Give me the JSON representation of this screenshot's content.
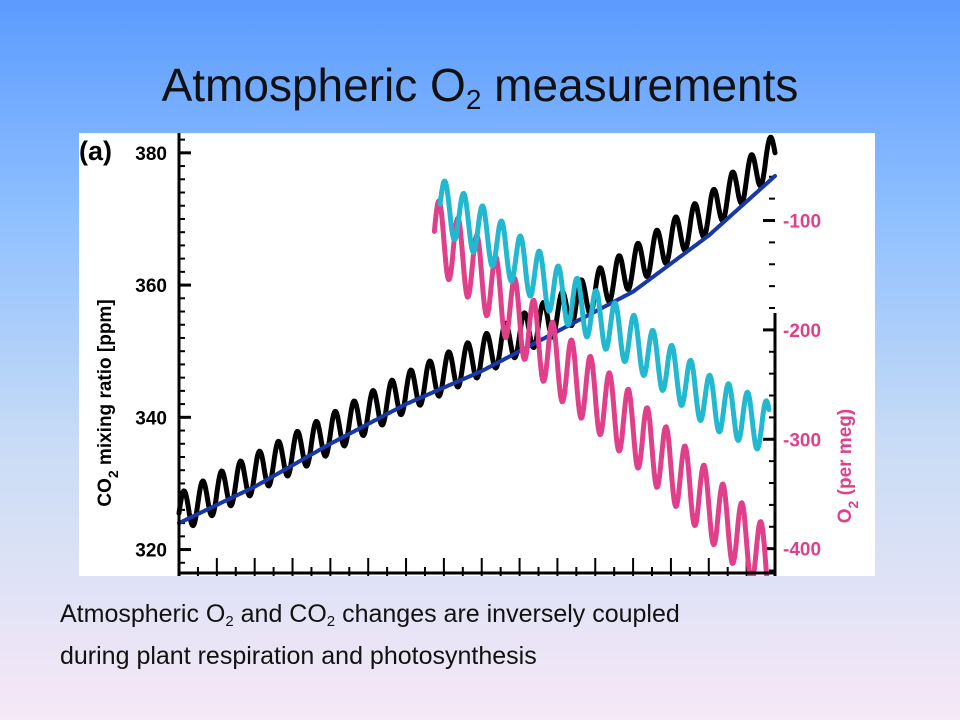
{
  "slide": {
    "title_prefix": "Atmospheric O",
    "title_sub": "2",
    "title_suffix": " measurements",
    "caption_line1_a": "Atmospheric O",
    "caption_line1_sub1": "2",
    "caption_line1_b": " and CO",
    "caption_line1_sub2": "2",
    "caption_line1_c": " changes are inversely coupled",
    "caption_line2": "during plant respiration and photosynthesis"
  },
  "chart_data": {
    "type": "line",
    "panel_label": "(a)",
    "y_left": {
      "label_main": "CO",
      "label_sub": "2",
      "label_rest": " mixing ratio [ppm]",
      "ticks": [
        320,
        340,
        360,
        380
      ],
      "range": [
        316,
        383
      ],
      "color": "#000000"
    },
    "y_right": {
      "label_main": "O",
      "label_sub": "2",
      "label_rest": " (per meg)",
      "ticks": [
        -100,
        -200,
        -300,
        -400
      ],
      "range": [
        -425,
        -20
      ],
      "color": "#e0408a"
    },
    "x_range": [
      1976,
      2007.5
    ],
    "series": [
      {
        "key": "co2_monthly",
        "color": "#000000",
        "points": [
          [
            1976.0,
            325.5
          ],
          [
            1980.0,
            331.5
          ],
          [
            1984.0,
            337.5
          ],
          [
            1988.0,
            343.8
          ],
          [
            1992.0,
            349.3
          ],
          [
            1996.0,
            355.5
          ],
          [
            2000.0,
            362.8
          ],
          [
            2004.0,
            370.8
          ],
          [
            2007.5,
            380.0
          ]
        ],
        "seasonal_amplitude": 3.0
      },
      {
        "key": "co2_trend",
        "color": "#1838a8",
        "points": [
          [
            1976.0,
            324.0
          ],
          [
            1980.0,
            329.5
          ],
          [
            1984.0,
            336.0
          ],
          [
            1988.0,
            342.0
          ],
          [
            1992.0,
            347.0
          ],
          [
            1996.0,
            353.0
          ],
          [
            2000.0,
            359.0
          ],
          [
            2004.0,
            367.5
          ],
          [
            2007.5,
            376.5
          ]
        ],
        "seasonal_amplitude": 0
      },
      {
        "key": "o2_station_1",
        "color": "#e0408a",
        "points": [
          [
            1989.5,
            -110
          ],
          [
            1992.0,
            -150
          ],
          [
            1996.0,
            -230
          ],
          [
            2000.0,
            -290
          ],
          [
            2004.0,
            -360
          ],
          [
            2007.2,
            -415
          ]
        ],
        "seasonal_amplitude": 32
      },
      {
        "key": "o2_station_2",
        "color": "#22b8d0",
        "points": [
          [
            1989.8,
            -85
          ],
          [
            1992.0,
            -110
          ],
          [
            1996.0,
            -165
          ],
          [
            2000.0,
            -210
          ],
          [
            2004.0,
            -265
          ],
          [
            2007.2,
            -290
          ]
        ],
        "seasonal_amplitude": 24
      }
    ]
  }
}
